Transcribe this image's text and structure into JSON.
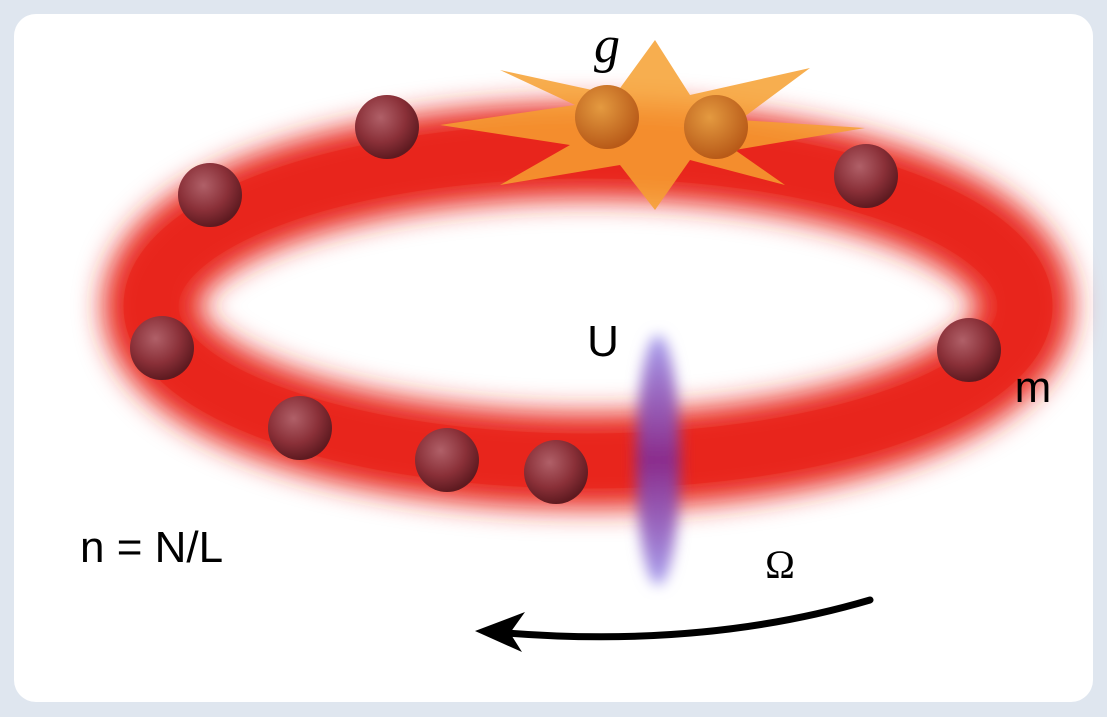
{
  "labels": {
    "coupling": "g",
    "barrier": "U",
    "mass": "m",
    "density": "n = N/L",
    "rotation": "Ω"
  }
}
